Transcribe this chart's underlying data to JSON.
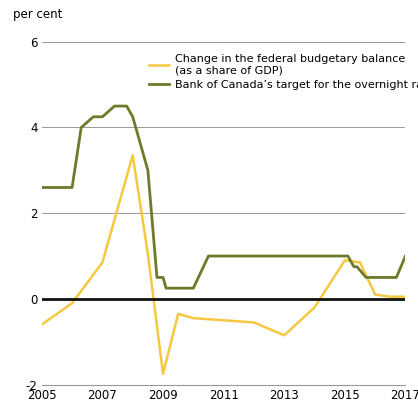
{
  "ylabel": "per cent",
  "ylim": [
    -2,
    6
  ],
  "yticks": [
    -2,
    0,
    2,
    4,
    6
  ],
  "ytick_labels": [
    "-2",
    "0",
    "2",
    "4",
    "6"
  ],
  "xlim": [
    2005,
    2017
  ],
  "xticks": [
    2005,
    2007,
    2009,
    2011,
    2013,
    2015,
    2017
  ],
  "budget_color": "#F5C842",
  "overnight_color": "#6B7B2A",
  "zero_line_color": "#111111",
  "grid_color": "#999999",
  "budget_label": "Change in the federal budgetary balance\n(as a share of GDP)",
  "overnight_label": "Bank of Canada’s target for the overnight rate",
  "budget_x": [
    2005,
    2006,
    2007,
    2008,
    2008.5,
    2009,
    2009.5,
    2010,
    2011,
    2012,
    2013,
    2014,
    2015,
    2015.5,
    2016,
    2016.5,
    2017
  ],
  "budget_y": [
    -0.6,
    -0.1,
    0.85,
    3.35,
    1.05,
    -1.75,
    -0.35,
    -0.45,
    -0.5,
    -0.55,
    -0.85,
    -0.2,
    0.9,
    0.85,
    0.1,
    0.05,
    0.05
  ],
  "overnight_x": [
    2005,
    2005.4,
    2006.0,
    2006.3,
    2006.7,
    2007.0,
    2007.4,
    2007.5,
    2007.8,
    2008.0,
    2008.5,
    2008.8,
    2009.0,
    2009.1,
    2009.5,
    2010.0,
    2010.5,
    2010.6,
    2015.0,
    2015.1,
    2015.3,
    2015.4,
    2015.7,
    2015.8,
    2016.0,
    2016.5,
    2016.7,
    2017.0
  ],
  "overnight_y": [
    2.6,
    2.6,
    2.6,
    4.0,
    4.25,
    4.25,
    4.5,
    4.5,
    4.5,
    4.25,
    3.0,
    0.5,
    0.5,
    0.25,
    0.25,
    0.25,
    1.0,
    1.0,
    1.0,
    1.0,
    0.75,
    0.75,
    0.5,
    0.5,
    0.5,
    0.5,
    0.5,
    1.0
  ]
}
